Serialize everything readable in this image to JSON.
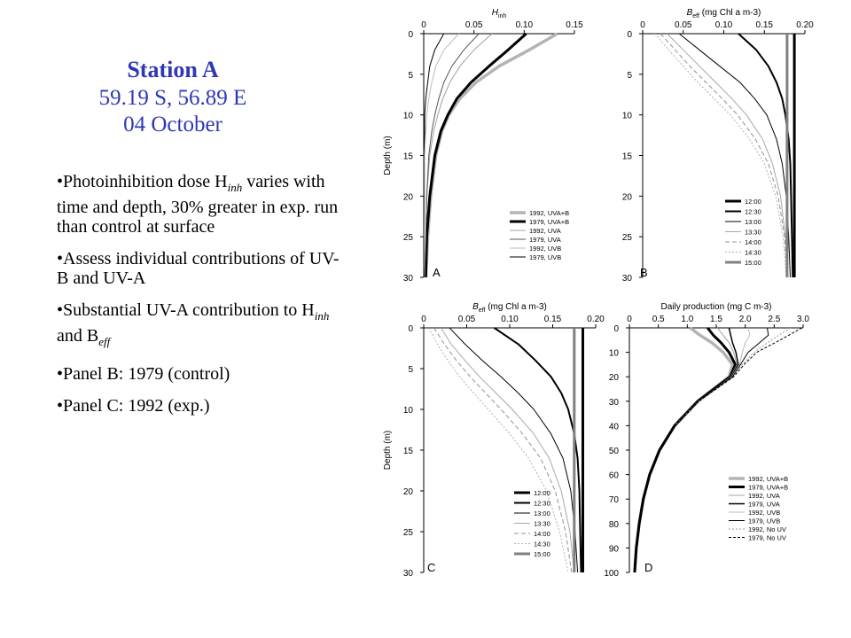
{
  "slide": {
    "title": "Station A",
    "coords": "59.19 S, 56.89 E",
    "date": "04 October",
    "bullets": [
      {
        "before": "Photoinhibition dose H",
        "sub": "inh",
        "after": " varies with time and depth, 30% greater in exp. run than control at surface"
      },
      {
        "before": "Assess individual contributions of UV-B and UV-A"
      },
      {
        "before": "Substantial UV-A contribution to H",
        "sub": "inh",
        "mid": " and B",
        "sub2": "eff"
      },
      {
        "before": "Panel B: 1979 (control)"
      },
      {
        "before": "Panel C: 1992 (exp.)"
      }
    ]
  },
  "chart_data": [
    {
      "panel": "A",
      "type": "line",
      "xlabel": "H",
      "xlabel_sub": "inh",
      "ylabel": "Depth (m)",
      "xlim": [
        0,
        0.15
      ],
      "xticks": [
        "0",
        "0.05",
        "0.10",
        "0.15"
      ],
      "ylim": [
        0,
        30
      ],
      "yticks": [
        "0",
        "5",
        "10",
        "15",
        "20",
        "25",
        "30"
      ],
      "legend_position": "bottom-right",
      "series": [
        {
          "name": "1992, UVA+B",
          "color": "#b4b4b4",
          "width": 3.5,
          "dash": "",
          "y": [
            0,
            2,
            4,
            6,
            8,
            10,
            12,
            15,
            20,
            25,
            30
          ],
          "x": [
            0.133,
            0.105,
            0.075,
            0.052,
            0.036,
            0.025,
            0.018,
            0.012,
            0.007,
            0.004,
            0.002
          ]
        },
        {
          "name": "1979, UVA+B",
          "color": "#000000",
          "width": 3,
          "dash": "",
          "y": [
            0,
            2,
            4,
            6,
            8,
            10,
            12,
            15,
            20,
            25,
            30
          ],
          "x": [
            0.102,
            0.084,
            0.065,
            0.047,
            0.033,
            0.024,
            0.017,
            0.011,
            0.006,
            0.003,
            0.002
          ]
        },
        {
          "name": "1992, UVA",
          "color": "#a0a0a0",
          "width": 1,
          "dash": "",
          "y": [
            0,
            2,
            4,
            6,
            8,
            10,
            12,
            15,
            20,
            25,
            30
          ],
          "x": [
            0.068,
            0.05,
            0.036,
            0.026,
            0.019,
            0.014,
            0.01,
            0.006,
            0.003,
            0.002,
            0.001
          ]
        },
        {
          "name": "1979, UVA",
          "color": "#555555",
          "width": 1,
          "dash": "",
          "y": [
            0,
            2,
            4,
            6,
            8,
            10,
            12,
            15,
            20,
            25,
            30
          ],
          "x": [
            0.055,
            0.04,
            0.028,
            0.02,
            0.015,
            0.011,
            0.008,
            0.005,
            0.003,
            0.002,
            0.001
          ]
        },
        {
          "name": "1992, UVB",
          "color": "#bbbbbb",
          "width": 1,
          "dash": "",
          "y": [
            0,
            2,
            4,
            6,
            8,
            10,
            12,
            15,
            20,
            25,
            30
          ],
          "x": [
            0.035,
            0.02,
            0.012,
            0.008,
            0.005,
            0.003,
            0.002,
            0.001,
            0.001,
            0,
            0
          ]
        },
        {
          "name": "1979, UVB",
          "color": "#000000",
          "width": 1,
          "dash": "",
          "y": [
            0,
            2,
            4,
            6,
            8,
            10,
            12,
            15,
            20,
            25,
            30
          ],
          "x": [
            0.02,
            0.011,
            0.006,
            0.004,
            0.002,
            0.001,
            0.001,
            0,
            0,
            0,
            0
          ]
        }
      ]
    },
    {
      "panel": "B",
      "type": "line",
      "xlabel": "B",
      "xlabel_sub": "eff",
      "xlabel_after": " (mg Chl a m-3)",
      "ylabel": "",
      "xlim": [
        0,
        0.2
      ],
      "xticks": [
        "0",
        "0.05",
        "0.10",
        "0.15",
        "0.20"
      ],
      "ylim": [
        0,
        30
      ],
      "yticks": [
        "0",
        "5",
        "10",
        "15",
        "20",
        "25",
        "30"
      ],
      "legend_position": "bottom-right",
      "series": [
        {
          "name": "12:00",
          "color": "#000000",
          "width": 3,
          "dash": "",
          "y": [
            0,
            5,
            10,
            15,
            20,
            25,
            30
          ],
          "x": [
            0.187,
            0.187,
            0.187,
            0.187,
            0.187,
            0.187,
            0.187
          ]
        },
        {
          "name": "12:30",
          "color": "#000000",
          "width": 2,
          "dash": "",
          "y": [
            0,
            2,
            4,
            6,
            8,
            10,
            13,
            16,
            20,
            25,
            30
          ],
          "x": [
            0.118,
            0.14,
            0.155,
            0.165,
            0.172,
            0.176,
            0.18,
            0.182,
            0.183,
            0.184,
            0.185
          ]
        },
        {
          "name": "13:00",
          "color": "#000000",
          "width": 1,
          "dash": "",
          "y": [
            0,
            2,
            4,
            6,
            8,
            10,
            13,
            16,
            20,
            25,
            30
          ],
          "x": [
            0.045,
            0.07,
            0.095,
            0.12,
            0.138,
            0.153,
            0.165,
            0.172,
            0.177,
            0.18,
            0.182
          ]
        },
        {
          "name": "13:30",
          "color": "#a8a8a8",
          "width": 1,
          "dash": "",
          "y": [
            0,
            2,
            4,
            6,
            8,
            10,
            13,
            16,
            20,
            25,
            30
          ],
          "x": [
            0.03,
            0.05,
            0.07,
            0.09,
            0.11,
            0.128,
            0.148,
            0.16,
            0.17,
            0.176,
            0.179
          ]
        },
        {
          "name": "14:00",
          "color": "#909090",
          "width": 1,
          "dash": "5,3",
          "y": [
            0,
            2,
            4,
            6,
            8,
            10,
            13,
            16,
            20,
            25,
            30
          ],
          "x": [
            0.022,
            0.04,
            0.058,
            0.078,
            0.098,
            0.117,
            0.139,
            0.155,
            0.167,
            0.175,
            0.178
          ]
        },
        {
          "name": "14:30",
          "color": "#b0b0b0",
          "width": 1,
          "dash": "2,2",
          "y": [
            0,
            2,
            4,
            6,
            8,
            10,
            13,
            16,
            20,
            25,
            30
          ],
          "x": [
            0.015,
            0.032,
            0.05,
            0.068,
            0.088,
            0.108,
            0.132,
            0.15,
            0.164,
            0.173,
            0.177
          ]
        },
        {
          "name": "15:00",
          "color": "#808080",
          "width": 3,
          "dash": "",
          "y": [
            0,
            5,
            10,
            15,
            20,
            25,
            30
          ],
          "x": [
            0.178,
            0.178,
            0.178,
            0.178,
            0.178,
            0.178,
            0.178
          ]
        }
      ]
    },
    {
      "panel": "C",
      "type": "line",
      "xlabel": "B",
      "xlabel_sub": "eff",
      "xlabel_after": " (mg Chl a m-3)",
      "ylabel": "Depth (m)",
      "xlim": [
        0,
        0.2
      ],
      "xticks": [
        "0",
        "0.05",
        "0.10",
        "0.15",
        "0.20"
      ],
      "ylim": [
        0,
        30
      ],
      "yticks": [
        "0",
        "5",
        "10",
        "15",
        "20",
        "25",
        "30"
      ],
      "legend_position": "bottom-right",
      "series": [
        {
          "name": "12:00",
          "color": "#000000",
          "width": 3,
          "dash": "",
          "y": [
            0,
            5,
            10,
            15,
            20,
            25,
            30
          ],
          "x": [
            0.185,
            0.185,
            0.185,
            0.185,
            0.185,
            0.185,
            0.185
          ]
        },
        {
          "name": "12:30",
          "color": "#000000",
          "width": 2,
          "dash": "",
          "y": [
            0,
            2,
            4,
            6,
            8,
            10,
            13,
            16,
            20,
            25,
            30
          ],
          "x": [
            0.082,
            0.11,
            0.13,
            0.148,
            0.16,
            0.168,
            0.175,
            0.179,
            0.181,
            0.182,
            0.183
          ]
        },
        {
          "name": "13:00",
          "color": "#000000",
          "width": 1,
          "dash": "",
          "y": [
            0,
            2,
            4,
            6,
            8,
            10,
            13,
            16,
            20,
            25,
            30
          ],
          "x": [
            0.03,
            0.048,
            0.068,
            0.09,
            0.11,
            0.128,
            0.148,
            0.162,
            0.171,
            0.176,
            0.179
          ]
        },
        {
          "name": "13:30",
          "color": "#a8a8a8",
          "width": 1,
          "dash": "",
          "y": [
            0,
            2,
            4,
            6,
            8,
            10,
            13,
            16,
            20,
            25,
            30
          ],
          "x": [
            0.02,
            0.032,
            0.048,
            0.065,
            0.084,
            0.103,
            0.128,
            0.146,
            0.16,
            0.17,
            0.175
          ]
        },
        {
          "name": "14:00",
          "color": "#909090",
          "width": 1,
          "dash": "5,3",
          "y": [
            0,
            2,
            4,
            6,
            8,
            10,
            13,
            16,
            20,
            25,
            30
          ],
          "x": [
            0.012,
            0.024,
            0.038,
            0.054,
            0.072,
            0.09,
            0.115,
            0.136,
            0.153,
            0.165,
            0.172
          ]
        },
        {
          "name": "14:30",
          "color": "#b0b0b0",
          "width": 1,
          "dash": "2,2",
          "y": [
            0,
            2,
            4,
            6,
            8,
            10,
            13,
            16,
            20,
            25,
            30
          ],
          "x": [
            0.006,
            0.016,
            0.028,
            0.042,
            0.058,
            0.075,
            0.1,
            0.122,
            0.143,
            0.158,
            0.168
          ]
        },
        {
          "name": "15:00",
          "color": "#808080",
          "width": 3,
          "dash": "",
          "y": [
            0,
            5,
            10,
            15,
            20,
            25,
            30
          ],
          "x": [
            0.175,
            0.175,
            0.175,
            0.175,
            0.175,
            0.175,
            0.175
          ]
        }
      ]
    },
    {
      "panel": "D",
      "type": "line",
      "xlabel": "Daily production (mg C m-3)",
      "ylabel": "",
      "xlim": [
        0,
        3.0
      ],
      "xticks": [
        "0",
        "0.5",
        "1.0",
        "1.5",
        "2.0",
        "2.5",
        "3.0"
      ],
      "ylim": [
        0,
        100
      ],
      "yticks": [
        "0",
        "10",
        "20",
        "30",
        "40",
        "50",
        "60",
        "70",
        "80",
        "90",
        "100"
      ],
      "legend_position": "bottom-right",
      "series": [
        {
          "name": "1992, UVA+B",
          "color": "#b4b4b4",
          "width": 3.5,
          "dash": "",
          "y": [
            0,
            3,
            6,
            10,
            15,
            20,
            25,
            30,
            40,
            50,
            60,
            70,
            80,
            90,
            100
          ],
          "x": [
            1.05,
            1.22,
            1.42,
            1.62,
            1.78,
            1.72,
            1.45,
            1.18,
            0.78,
            0.52,
            0.35,
            0.24,
            0.17,
            0.12,
            0.09
          ]
        },
        {
          "name": "1979, UVA+B",
          "color": "#000000",
          "width": 3,
          "dash": "",
          "y": [
            0,
            3,
            6,
            10,
            15,
            20,
            25,
            30,
            40,
            50,
            60,
            70,
            80,
            90,
            100
          ],
          "x": [
            1.35,
            1.45,
            1.58,
            1.72,
            1.83,
            1.74,
            1.46,
            1.18,
            0.78,
            0.52,
            0.35,
            0.24,
            0.17,
            0.12,
            0.09
          ]
        },
        {
          "name": "1992, UVA",
          "color": "#a0a0a0",
          "width": 1,
          "dash": "",
          "y": [
            0,
            3,
            6,
            10,
            15,
            20,
            25,
            30,
            40
          ],
          "x": [
            1.52,
            1.62,
            1.72,
            1.8,
            1.86,
            1.75,
            1.47,
            1.19,
            0.78
          ]
        },
        {
          "name": "1979, UVA",
          "color": "#000000",
          "width": 1.5,
          "dash": "",
          "y": [
            0,
            3,
            6,
            10,
            15,
            20,
            25,
            30,
            40
          ],
          "x": [
            1.72,
            1.75,
            1.78,
            1.84,
            1.88,
            1.76,
            1.47,
            1.19,
            0.78
          ]
        },
        {
          "name": "1992, UVB",
          "color": "#bbbbbb",
          "width": 1,
          "dash": "",
          "y": [
            0,
            3,
            6,
            10,
            15,
            20,
            25,
            30,
            40
          ],
          "x": [
            2.05,
            2.08,
            2.0,
            1.95,
            1.9,
            1.77,
            1.48,
            1.19,
            0.78
          ]
        },
        {
          "name": "1979, UVB",
          "color": "#000000",
          "width": 1,
          "dash": "",
          "y": [
            0,
            3,
            6,
            10,
            15,
            20,
            25,
            30,
            40
          ],
          "x": [
            2.38,
            2.4,
            2.25,
            2.05,
            1.92,
            1.78,
            1.48,
            1.19,
            0.78
          ]
        },
        {
          "name": "1992, No UV",
          "color": "#999999",
          "width": 1,
          "dash": "2,2",
          "y": [
            0,
            5,
            10,
            15,
            20,
            25,
            30,
            40
          ],
          "x": [
            2.78,
            2.45,
            2.15,
            1.95,
            1.8,
            1.5,
            1.2,
            0.78
          ]
        },
        {
          "name": "1979, No UV",
          "color": "#000000",
          "width": 1,
          "dash": "3,2",
          "y": [
            0,
            5,
            10,
            15,
            20,
            25,
            30,
            40
          ],
          "x": [
            2.98,
            2.6,
            2.2,
            1.98,
            1.8,
            1.5,
            1.2,
            0.78
          ]
        }
      ]
    }
  ]
}
